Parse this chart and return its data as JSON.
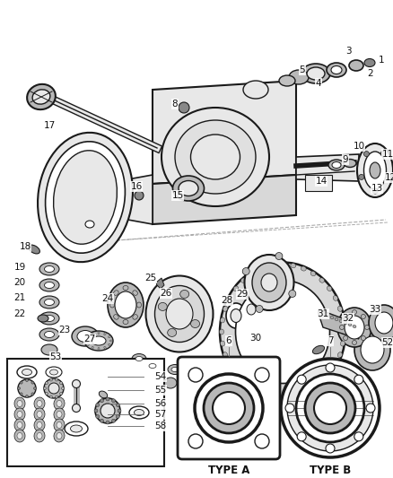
{
  "bg_color": "#f5f5f5",
  "line_color": "#1a1a1a",
  "gray_fill": "#d0d0d0",
  "light_gray": "#e8e8e8",
  "mid_gray": "#b8b8b8",
  "dark_gray": "#888888",
  "leader_color": "#666666",
  "label_color": "#111111",
  "fig_width": 4.38,
  "fig_height": 5.33,
  "dpi": 100,
  "font_size_label": 7.5,
  "font_size_type": 8.5
}
